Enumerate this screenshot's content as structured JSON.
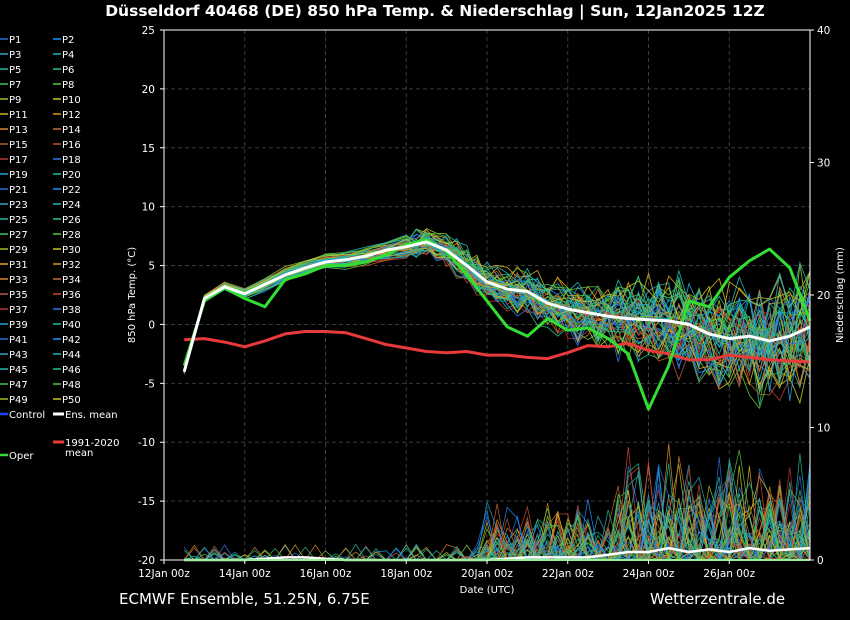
{
  "title": "Düsseldorf 40468 (DE)  850 hPa Temp. & Niederschlag | Sun, 12Jan2025 12Z",
  "footer_left": "ECMWF Ensemble, 51.25N, 6.75E",
  "footer_right": "Wetterzentrale.de",
  "chart_data": {
    "type": "line",
    "title": "Düsseldorf 40468 (DE)  850 hPa Temp. & Niederschlag | Sun, 12Jan2025 12Z",
    "xlabel": "Date (UTC)",
    "ylabel": "850 hPa Temp. (°C)",
    "y2label": "Niederschlag (mm)",
    "xlim": [
      0,
      16
    ],
    "ylim": [
      -20,
      25
    ],
    "y2lim": [
      0,
      40
    ],
    "grid": true,
    "x_ticks": [
      {
        "x": 0,
        "label": "12Jan 00z"
      },
      {
        "x": 2,
        "label": "14Jan 00z"
      },
      {
        "x": 4,
        "label": "16Jan 00z"
      },
      {
        "x": 6,
        "label": "18Jan 00z"
      },
      {
        "x": 8,
        "label": "20Jan 00z"
      },
      {
        "x": 10,
        "label": "22Jan 00z"
      },
      {
        "x": 12,
        "label": "24Jan 00z"
      },
      {
        "x": 14,
        "label": "26Jan 00z"
      }
    ],
    "y_ticks": [
      "25",
      "20",
      "15",
      "10",
      "5",
      "0",
      "-5",
      "-10",
      "-15",
      "-20"
    ],
    "y2_ticks": [
      "40",
      "30",
      "20",
      "10",
      "0"
    ],
    "x": [
      0.5,
      1.0,
      1.5,
      2.0,
      2.5,
      3.0,
      3.5,
      4.0,
      4.5,
      5.0,
      5.5,
      6.0,
      6.5,
      7.0,
      7.5,
      8.0,
      8.5,
      9.0,
      9.5,
      10.0,
      10.5,
      11.0,
      11.5,
      12.0,
      12.5,
      13.0,
      13.5,
      14.0,
      14.5,
      15.0,
      15.5,
      16.0
    ],
    "series": [
      {
        "name": "Ens. mean",
        "color": "#ffffff",
        "kind": "mean",
        "values": [
          -4.0,
          2.2,
          3.2,
          2.6,
          3.4,
          4.2,
          4.8,
          5.3,
          5.5,
          5.8,
          6.3,
          6.6,
          7.0,
          6.3,
          5.0,
          3.6,
          3.0,
          2.8,
          1.8,
          1.3,
          1.0,
          0.7,
          0.5,
          0.4,
          0.3,
          0.0,
          -0.8,
          -1.2,
          -1.0,
          -1.4,
          -1.0,
          -0.2
        ]
      },
      {
        "name": "1991-2020 mean",
        "color": "#e83a3a",
        "kind": "clim",
        "values": [
          -1.3,
          -1.2,
          -1.5,
          -1.9,
          -1.4,
          -0.8,
          -0.6,
          -0.6,
          -0.7,
          -1.2,
          -1.7,
          -2.0,
          -2.3,
          -2.4,
          -2.3,
          -2.6,
          -2.6,
          -2.8,
          -2.9,
          -2.4,
          -1.8,
          -1.9,
          -1.6,
          -2.2,
          -2.5,
          -3.0,
          -3.0,
          -2.6,
          -2.8,
          -3.0,
          -3.1,
          -3.2
        ]
      },
      {
        "name": "Oper",
        "color": "#33dd33",
        "kind": "oper",
        "values": [
          -3.5,
          2.0,
          3.1,
          2.2,
          1.5,
          3.8,
          4.3,
          5.0,
          5.0,
          5.3,
          5.9,
          6.8,
          7.2,
          6.2,
          4.2,
          2.0,
          -0.2,
          -1.0,
          0.5,
          -0.5,
          -0.3,
          -1.2,
          -2.5,
          -7.2,
          -3.5,
          2.0,
          1.5,
          4.0,
          5.4,
          6.4,
          4.8,
          0.3
        ]
      }
    ],
    "precip_series": [
      {
        "name": "Ens. mean",
        "color": "#ffffff",
        "values": [
          0,
          0,
          0,
          0,
          0.1,
          0.2,
          0.2,
          0.1,
          0,
          0,
          0,
          0,
          0,
          0,
          0,
          0,
          0.1,
          0.2,
          0.2,
          0.2,
          0.2,
          0.4,
          0.6,
          0.6,
          0.9,
          0.6,
          0.8,
          0.6,
          0.9,
          0.7,
          0.8,
          0.9
        ]
      }
    ],
    "legend": {
      "members": [
        "P1",
        "P2",
        "P3",
        "P4",
        "P5",
        "P6",
        "P7",
        "P8",
        "P9",
        "P10",
        "P11",
        "P12",
        "P13",
        "P14",
        "P15",
        "P16",
        "P17",
        "P18",
        "P19",
        "P20",
        "P21",
        "P22",
        "P23",
        "P24",
        "P25",
        "P26",
        "P27",
        "P28",
        "P29",
        "P30",
        "P31",
        "P32",
        "P33",
        "P34",
        "P35",
        "P36",
        "P37",
        "P38",
        "P39",
        "P40",
        "P41",
        "P42",
        "P43",
        "P44",
        "P45",
        "P46",
        "P47",
        "P48",
        "P49",
        "P50"
      ],
      "member_colors": [
        "#2a6bd6",
        "#1e90ff",
        "#2aa7c9",
        "#23b5b5",
        "#20b8a0",
        "#22c27e",
        "#35c85a",
        "#5cc43a",
        "#9ac22e",
        "#c8c424",
        "#d8b020",
        "#d89a22",
        "#d8822a",
        "#c86a32",
        "#b85a3a",
        "#cc4a2a",
        "#b83838",
        "#2a7ae0",
        "#1aa0d8",
        "#18c0a0"
      ],
      "control": "Control",
      "control_color": "#1a44ff",
      "mean": "Ens. mean",
      "clim": "1991-2020\nmean",
      "oper": "Oper"
    }
  }
}
